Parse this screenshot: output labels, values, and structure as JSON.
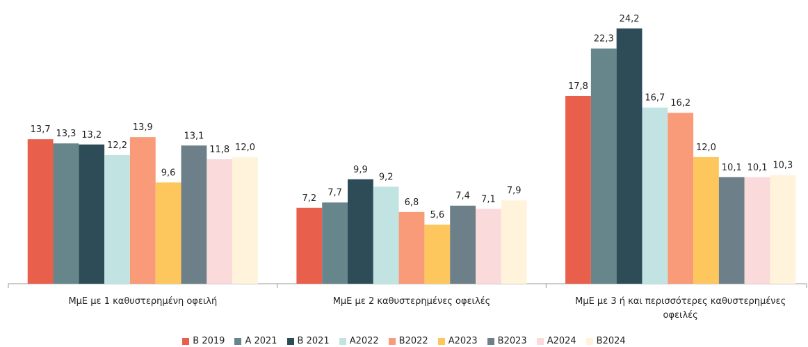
{
  "chart_data": {
    "type": "bar",
    "categories": [
      "ΜμΕ με 1 καθυστερημένη οφειλή",
      "ΜμΕ με 2 καθυστερημένες οφειλές",
      "ΜμΕ με 3 ή και περισσότερες καθυστερημένες οφειλές"
    ],
    "series": [
      {
        "name": "Β 2019",
        "color": "#e8604c",
        "values": [
          13.7,
          7.2,
          17.8
        ],
        "value_labels": [
          "13,7",
          "7,2",
          "17,8"
        ]
      },
      {
        "name": "Α 2021",
        "color": "#66868b",
        "values": [
          13.3,
          7.7,
          22.3
        ],
        "value_labels": [
          "13,3",
          "7,7",
          "22,3"
        ]
      },
      {
        "name": "Β 2021",
        "color": "#2e4b58",
        "values": [
          13.2,
          9.9,
          24.2
        ],
        "value_labels": [
          "13,2",
          "9,9",
          "24,2"
        ]
      },
      {
        "name": "Α2022",
        "color": "#c1e3e2",
        "values": [
          12.2,
          9.2,
          16.7
        ],
        "value_labels": [
          "12,2",
          "9,2",
          "16,7"
        ]
      },
      {
        "name": "Β2022",
        "color": "#f99a78",
        "values": [
          13.9,
          6.8,
          16.2
        ],
        "value_labels": [
          "13,9",
          "6,8",
          "16,2"
        ]
      },
      {
        "name": "Α2023",
        "color": "#fdc75e",
        "values": [
          9.6,
          5.6,
          12.0
        ],
        "value_labels": [
          "9,6",
          "5,6",
          "12,0"
        ]
      },
      {
        "name": "Β2023",
        "color": "#6d7f88",
        "values": [
          13.1,
          7.4,
          10.1
        ],
        "value_labels": [
          "13,1",
          "7,4",
          "10,1"
        ]
      },
      {
        "name": "Α2024",
        "color": "#fadadb",
        "values": [
          11.8,
          7.1,
          10.1
        ],
        "value_labels": [
          "11,8",
          "7,1",
          "10,1"
        ]
      },
      {
        "name": "Β2024",
        "color": "#fff3dc",
        "values": [
          12.0,
          7.9,
          10.3
        ],
        "value_labels": [
          "12,0",
          "7,9",
          "10,3"
        ]
      }
    ],
    "ylim": [
      0,
      25
    ],
    "grid": false
  }
}
